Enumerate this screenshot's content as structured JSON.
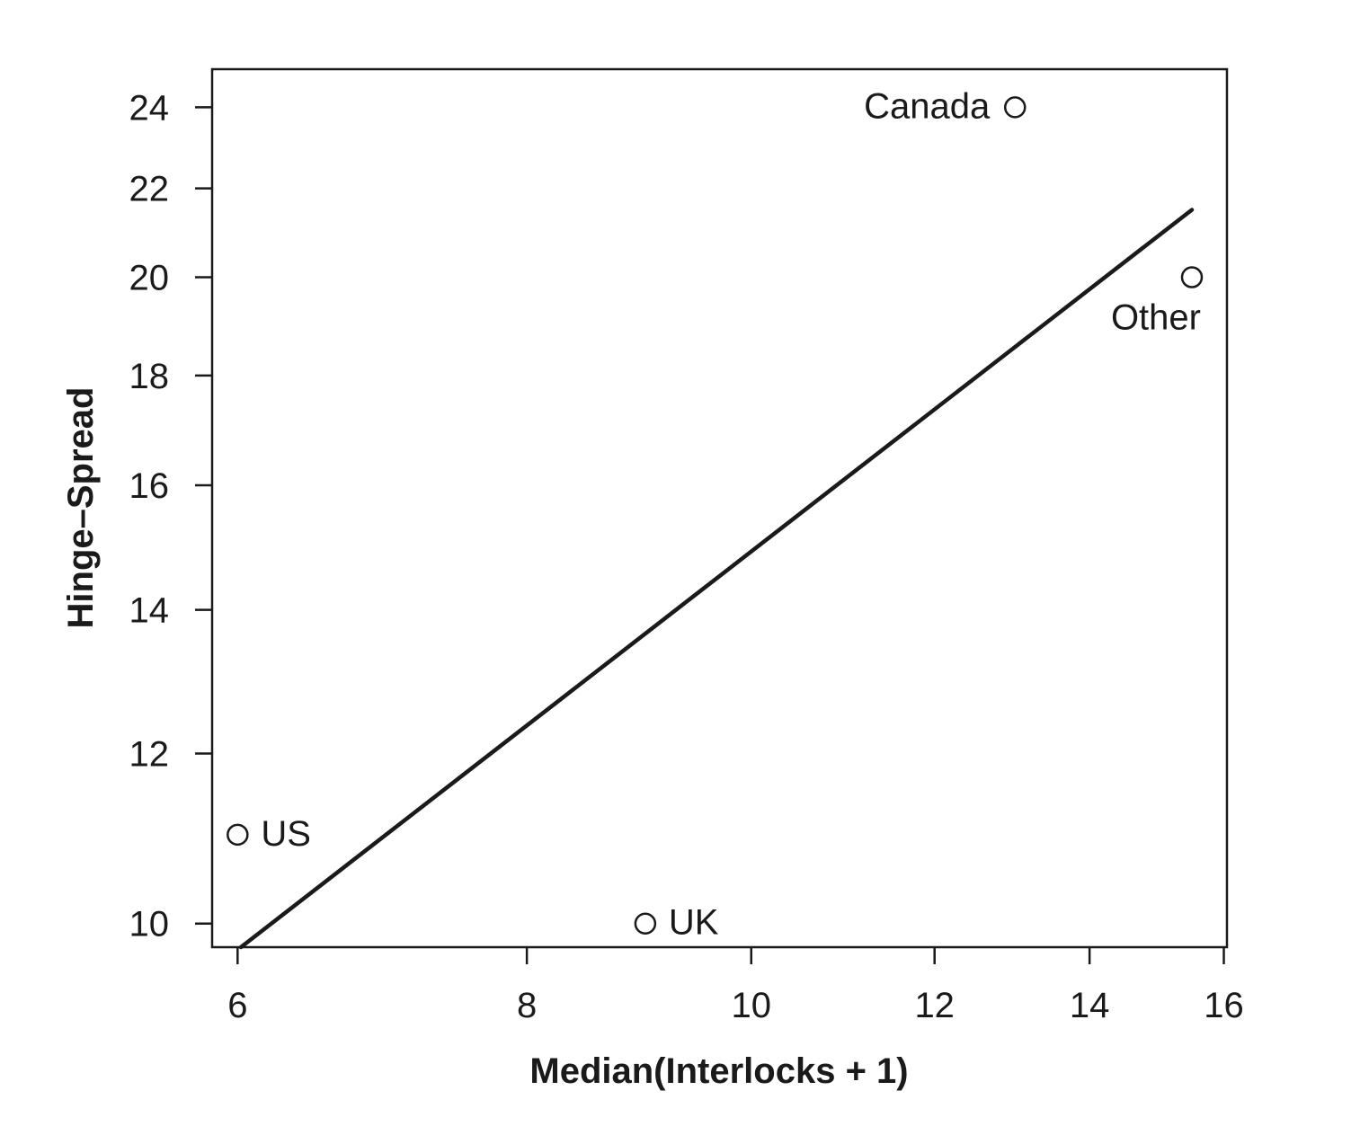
{
  "chart_data": {
    "type": "scatter",
    "xlabel": "Median(Interlocks + 1)",
    "ylabel": "Hinge–Spread",
    "x_scale": "log",
    "y_scale": "log",
    "xlim": [
      5.85,
      16.05
    ],
    "ylim": [
      9.75,
      25.0
    ],
    "x_ticks": [
      6,
      8,
      10,
      12,
      14,
      16
    ],
    "y_ticks": [
      10,
      12,
      14,
      16,
      18,
      20,
      22,
      24
    ],
    "grid": false,
    "legend": "none",
    "points": [
      {
        "label": "US",
        "x": 6,
        "y": 11
      },
      {
        "label": "UK",
        "x": 9,
        "y": 10
      },
      {
        "label": "Canada",
        "x": 13,
        "y": 24
      },
      {
        "label": "Other",
        "x": 15.5,
        "y": 20
      }
    ],
    "fit_line": {
      "x": [
        6.02,
        15.5
      ],
      "y": [
        9.75,
        21.5
      ]
    },
    "colors": {
      "ink": "#1a1a1a",
      "background": "#ffffff"
    }
  }
}
